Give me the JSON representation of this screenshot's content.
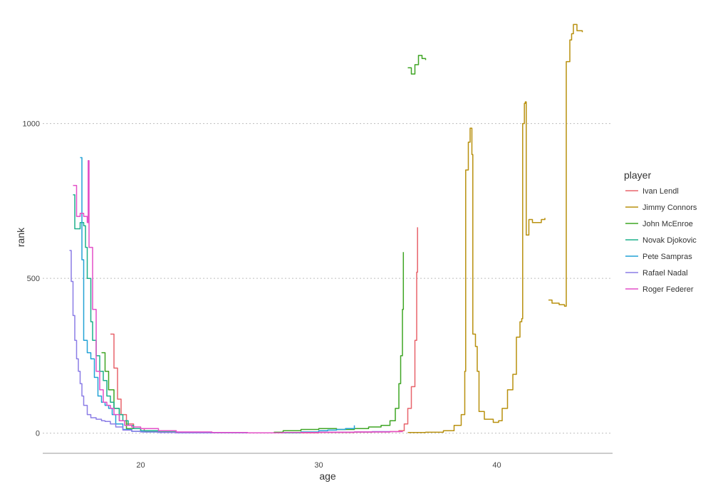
{
  "chart_data": {
    "type": "line",
    "title": "",
    "xlabel": "age",
    "ylabel": "rank",
    "xlim": [
      14.5,
      46.5
    ],
    "ylim": [
      -65,
      1330
    ],
    "x_ticks": [
      20,
      30,
      40
    ],
    "y_ticks": [
      0,
      500,
      1000
    ],
    "grid": {
      "horizontal": true,
      "vertical": false
    },
    "legend": {
      "title": "player",
      "placement": "right"
    },
    "series": [
      {
        "name": "Ivan Lendl",
        "color": "#e8636b",
        "segments": [
          [
            [
              18.3,
              320
            ],
            [
              18.5,
              210
            ],
            [
              18.7,
              110
            ],
            [
              18.9,
              60
            ],
            [
              19.2,
              30
            ],
            [
              19.6,
              15
            ],
            [
              20.2,
              8
            ],
            [
              21,
              4
            ],
            [
              22,
              2
            ],
            [
              24,
              1
            ],
            [
              26,
              1
            ],
            [
              28,
              1
            ],
            [
              30,
              2
            ],
            [
              32,
              3
            ],
            [
              33,
              4
            ],
            [
              34,
              5
            ],
            [
              34.5,
              8
            ],
            [
              34.8,
              30
            ],
            [
              35,
              80
            ],
            [
              35.2,
              150
            ],
            [
              35.4,
              300
            ],
            [
              35.5,
              520
            ],
            [
              35.55,
              665
            ]
          ]
        ]
      },
      {
        "name": "Jimmy Connors",
        "color": "#b8900e",
        "segments": [
          [
            [
              35,
              2
            ],
            [
              36,
              3
            ],
            [
              37,
              8
            ],
            [
              37.6,
              25
            ],
            [
              38,
              60
            ],
            [
              38.2,
              200
            ],
            [
              38.25,
              850
            ],
            [
              38.4,
              940
            ],
            [
              38.5,
              985
            ],
            [
              38.6,
              900
            ],
            [
              38.65,
              320
            ],
            [
              38.8,
              280
            ],
            [
              38.9,
              200
            ],
            [
              39,
              70
            ],
            [
              39.3,
              45
            ],
            [
              39.8,
              35
            ],
            [
              40.1,
              40
            ],
            [
              40.3,
              80
            ],
            [
              40.6,
              140
            ],
            [
              40.9,
              190
            ],
            [
              41.1,
              310
            ],
            [
              41.3,
              360
            ],
            [
              41.4,
              370
            ],
            [
              41.45,
              1000
            ],
            [
              41.55,
              1065
            ],
            [
              41.6,
              1070
            ],
            [
              41.65,
              640
            ],
            [
              41.8,
              690
            ],
            [
              42,
              680
            ],
            [
              42.3,
              680
            ],
            [
              42.5,
              690
            ],
            [
              42.7,
              695
            ]
          ],
          [
            [
              42.9,
              430
            ],
            [
              43.1,
              420
            ],
            [
              43.3,
              420
            ],
            [
              43.5,
              415
            ],
            [
              43.8,
              410
            ],
            [
              43.9,
              1200
            ],
            [
              44.1,
              1270
            ],
            [
              44.2,
              1290
            ],
            [
              44.3,
              1320
            ],
            [
              44.5,
              1300
            ],
            [
              44.8,
              1295
            ]
          ]
        ]
      },
      {
        "name": "John McEnroe",
        "color": "#3fa524",
        "segments": [
          [
            [
              17.8,
              260
            ],
            [
              18,
              200
            ],
            [
              18.2,
              140
            ],
            [
              18.5,
              80
            ],
            [
              18.8,
              40
            ],
            [
              19.2,
              15
            ],
            [
              20,
              5
            ],
            [
              21,
              3
            ],
            [
              22,
              2
            ],
            [
              24,
              1
            ],
            [
              26,
              1
            ],
            [
              27.5,
              3
            ],
            [
              28,
              8
            ],
            [
              29,
              12
            ],
            [
              30,
              15
            ],
            [
              31,
              12
            ],
            [
              32,
              15
            ],
            [
              32.8,
              20
            ],
            [
              33.5,
              25
            ],
            [
              34,
              40
            ],
            [
              34.3,
              80
            ],
            [
              34.5,
              160
            ],
            [
              34.6,
              250
            ],
            [
              34.7,
              400
            ],
            [
              34.75,
              585
            ]
          ],
          [
            [
              35,
              1180
            ],
            [
              35.2,
              1160
            ],
            [
              35.4,
              1190
            ],
            [
              35.6,
              1220
            ],
            [
              35.8,
              1210
            ],
            [
              36,
              1205
            ]
          ]
        ]
      },
      {
        "name": "Novak Djokovic",
        "color": "#1db08c",
        "segments": [
          [
            [
              16.2,
              770
            ],
            [
              16.3,
              660
            ],
            [
              16.6,
              680
            ],
            [
              16.8,
              670
            ],
            [
              16.9,
              600
            ],
            [
              17,
              500
            ],
            [
              17.2,
              360
            ],
            [
              17.3,
              300
            ],
            [
              17.5,
              250
            ],
            [
              17.7,
              200
            ],
            [
              17.9,
              170
            ],
            [
              18.1,
              120
            ],
            [
              18.3,
              100
            ],
            [
              18.5,
              80
            ],
            [
              18.8,
              60
            ],
            [
              19,
              40
            ],
            [
              19.3,
              25
            ],
            [
              19.6,
              15
            ],
            [
              20,
              8
            ],
            [
              21,
              4
            ],
            [
              22,
              2
            ],
            [
              24,
              1
            ],
            [
              26,
              1
            ],
            [
              28,
              1
            ],
            [
              29,
              1
            ]
          ]
        ]
      },
      {
        "name": "Pete Sampras",
        "color": "#22a2d6",
        "segments": [
          [
            [
              16.6,
              890
            ],
            [
              16.7,
              560
            ],
            [
              16.8,
              300
            ],
            [
              17,
              260
            ],
            [
              17.2,
              240
            ],
            [
              17.4,
              180
            ],
            [
              17.6,
              120
            ],
            [
              17.8,
              100
            ],
            [
              18,
              90
            ],
            [
              18.2,
              80
            ],
            [
              18.4,
              60
            ],
            [
              18.6,
              30
            ],
            [
              19,
              12
            ],
            [
              19.5,
              6
            ],
            [
              20.2,
              4
            ],
            [
              21,
              2
            ],
            [
              22,
              1
            ],
            [
              24,
              1
            ],
            [
              26,
              1
            ],
            [
              28,
              2
            ],
            [
              29,
              4
            ],
            [
              30,
              8
            ],
            [
              30.5,
              10
            ],
            [
              31,
              12
            ],
            [
              31.5,
              15
            ],
            [
              32,
              25
            ]
          ]
        ]
      },
      {
        "name": "Rafael Nadal",
        "color": "#8b7de6",
        "segments": [
          [
            [
              16,
              590
            ],
            [
              16.1,
              490
            ],
            [
              16.2,
              380
            ],
            [
              16.3,
              300
            ],
            [
              16.4,
              240
            ],
            [
              16.5,
              200
            ],
            [
              16.6,
              160
            ],
            [
              16.7,
              120
            ],
            [
              16.8,
              90
            ],
            [
              17,
              60
            ],
            [
              17.2,
              50
            ],
            [
              17.5,
              45
            ],
            [
              17.8,
              40
            ],
            [
              18,
              38
            ],
            [
              18.3,
              30
            ],
            [
              18.6,
              20
            ],
            [
              19,
              10
            ],
            [
              19.5,
              6
            ],
            [
              20,
              4
            ],
            [
              21,
              2
            ],
            [
              22,
              1
            ],
            [
              24,
              1
            ],
            [
              26,
              1
            ],
            [
              28,
              2
            ],
            [
              30,
              3
            ],
            [
              32,
              4
            ],
            [
              33,
              5
            ],
            [
              34,
              6
            ]
          ]
        ]
      },
      {
        "name": "Roger Federer",
        "color": "#e34fc7",
        "segments": [
          [
            [
              16.2,
              800
            ],
            [
              16.4,
              700
            ],
            [
              16.6,
              710
            ],
            [
              16.8,
              700
            ],
            [
              17,
              680
            ],
            [
              17.05,
              880
            ],
            [
              17.1,
              600
            ],
            [
              17.3,
              400
            ],
            [
              17.5,
              200
            ],
            [
              17.7,
              140
            ],
            [
              17.9,
              100
            ],
            [
              18.1,
              90
            ],
            [
              18.3,
              80
            ],
            [
              18.5,
              60
            ],
            [
              18.8,
              40
            ],
            [
              19.1,
              25
            ],
            [
              19.5,
              20
            ],
            [
              20,
              15
            ],
            [
              21,
              8
            ],
            [
              22,
              4
            ],
            [
              24,
              2
            ],
            [
              26,
              1
            ],
            [
              28,
              2
            ],
            [
              30,
              3
            ],
            [
              32,
              4
            ],
            [
              34,
              5
            ],
            [
              34.7,
              6
            ]
          ]
        ]
      }
    ]
  }
}
